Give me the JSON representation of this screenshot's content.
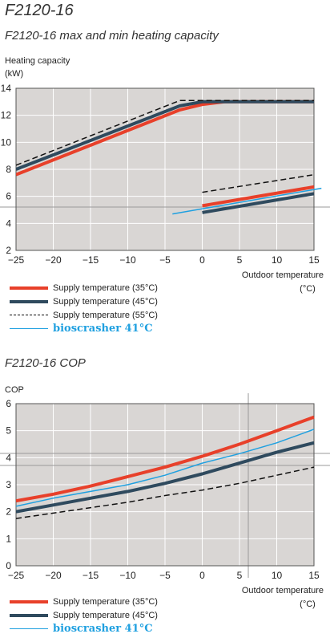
{
  "page": {
    "title": "F2120-16"
  },
  "colors": {
    "s35": "#e8402a",
    "s45": "#2f4a5e",
    "s55": "#111111",
    "bio": "#1fa0e0",
    "plot_bg": "#d9d6d4"
  },
  "chart_data": [
    {
      "type": "line",
      "title": "F2120-16 max and min heating capacity",
      "ylabel": "Heating capacity",
      "ylabel_unit": "(kW)",
      "xlabel": "Outdoor temperature",
      "xlabel_unit": "(°C)",
      "xlim": [
        -25,
        15
      ],
      "ylim": [
        2,
        14
      ],
      "xticks": [
        -25,
        -20,
        -15,
        -10,
        -5,
        0,
        5,
        10,
        15
      ],
      "yticks": [
        2,
        4,
        6,
        8,
        10,
        12,
        14
      ],
      "grid": true,
      "legend_position": "bottom",
      "series": [
        {
          "name": "Supply temperature (35°C)",
          "color_key": "s35",
          "style": "solid",
          "width": 4,
          "segments": [
            {
              "x": [
                -25,
                -3,
                0,
                3,
                15
              ],
              "y": [
                7.6,
                12.4,
                12.8,
                13.0,
                13.0
              ]
            },
            {
              "x": [
                0,
                15
              ],
              "y": [
                5.3,
                6.7
              ]
            }
          ]
        },
        {
          "name": "Supply temperature (45°C)",
          "color_key": "s45",
          "style": "solid",
          "width": 4,
          "segments": [
            {
              "x": [
                -25,
                -3,
                0,
                3,
                15
              ],
              "y": [
                8.0,
                12.7,
                13.0,
                13.0,
                13.0
              ]
            },
            {
              "x": [
                0,
                15
              ],
              "y": [
                4.8,
                6.2
              ]
            }
          ]
        },
        {
          "name": "Supply temperature (55°C)",
          "color_key": "s55",
          "style": "dashed",
          "width": 1.5,
          "segments": [
            {
              "x": [
                -25,
                -3,
                15
              ],
              "y": [
                8.3,
                13.1,
                13.1
              ]
            },
            {
              "x": [
                0,
                15
              ],
              "y": [
                6.3,
                7.6
              ]
            }
          ]
        },
        {
          "name": "bioscrasher 41°C",
          "color_key": "bio",
          "style": "solid",
          "width": 1.5,
          "segments": [
            {
              "x": [
                -4,
                16
              ],
              "y": [
                4.7,
                6.6
              ]
            }
          ]
        }
      ]
    },
    {
      "type": "line",
      "title": "F2120-16 COP",
      "ylabel": "COP",
      "xlabel": "Outdoor temperature",
      "xlabel_unit": "(°C)",
      "xlim": [
        -25,
        15
      ],
      "ylim": [
        0,
        6
      ],
      "xticks": [
        -25,
        -20,
        -15,
        -10,
        -5,
        0,
        5,
        10,
        15
      ],
      "yticks": [
        0,
        1,
        2,
        3,
        4,
        5,
        6
      ],
      "grid": true,
      "legend_position": "bottom",
      "series": [
        {
          "name": "Supply temperature (35°C)",
          "color_key": "s35",
          "style": "solid",
          "width": 4,
          "x": [
            -25,
            -20,
            -15,
            -10,
            -5,
            0,
            5,
            10,
            15
          ],
          "y": [
            2.4,
            2.65,
            2.95,
            3.3,
            3.65,
            4.05,
            4.5,
            5.0,
            5.5
          ]
        },
        {
          "name": "Supply temperature (45°C)",
          "color_key": "s45",
          "style": "solid",
          "width": 4,
          "x": [
            -25,
            -20,
            -15,
            -10,
            -5,
            0,
            5,
            10,
            15
          ],
          "y": [
            2.0,
            2.25,
            2.5,
            2.75,
            3.05,
            3.4,
            3.8,
            4.2,
            4.55
          ]
        },
        {
          "name": "bioscrasher 41°C",
          "color_key": "bio",
          "style": "solid",
          "width": 1.5,
          "x": [
            -25,
            -20,
            -15,
            -10,
            -5,
            0,
            5,
            10,
            15
          ],
          "y": [
            2.2,
            2.5,
            2.75,
            3.0,
            3.35,
            3.8,
            4.15,
            4.55,
            5.05
          ]
        },
        {
          "name": "",
          "color_key": "s55",
          "style": "dashed",
          "width": 1.5,
          "x": [
            -25,
            -20,
            -15,
            -10,
            -5,
            0,
            5,
            10,
            15
          ],
          "y": [
            1.75,
            1.95,
            2.15,
            2.35,
            2.6,
            2.8,
            3.05,
            3.35,
            3.65
          ]
        }
      ]
    }
  ]
}
